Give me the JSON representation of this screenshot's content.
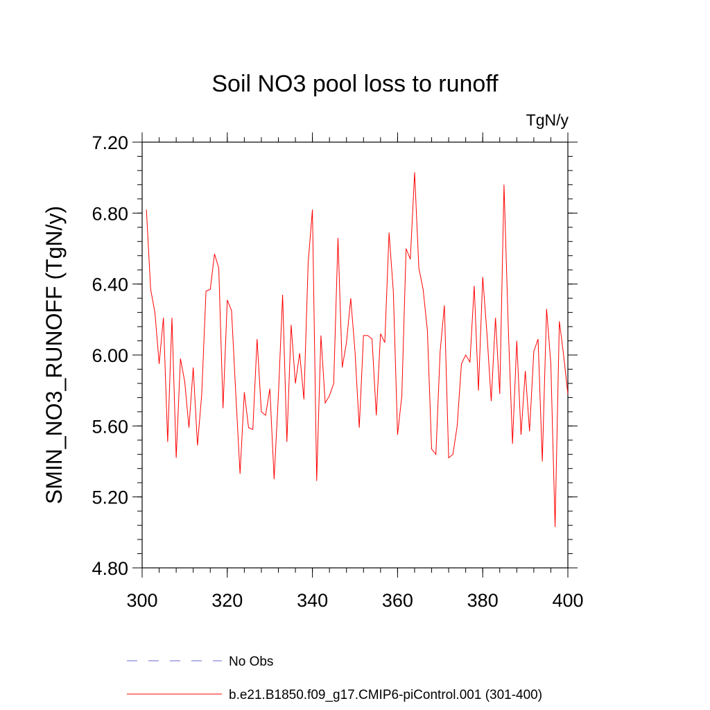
{
  "chart_data": {
    "type": "line",
    "title": "Soil NO3 pool loss to runoff",
    "units": "TgN/y",
    "xlabel": "",
    "ylabel": "SMIN_NO3_RUNOFF  (TgN/y)",
    "xlim": [
      300,
      400
    ],
    "ylim": [
      4.8,
      7.2
    ],
    "x_ticks": [
      300,
      320,
      340,
      360,
      380,
      400
    ],
    "y_ticks": [
      4.8,
      5.2,
      5.6,
      6.0,
      6.4,
      6.8,
      7.2
    ],
    "y_tick_labels": [
      "4.80",
      "5.20",
      "5.60",
      "6.00",
      "6.40",
      "6.80",
      "7.20"
    ],
    "x_tick_labels": [
      "300",
      "320",
      "340",
      "360",
      "380",
      "400"
    ],
    "series": [
      {
        "name": "b.e21.B1850.f09_g17.CMIP6-piControl.001 (301-400)",
        "color": "#ff0000",
        "style": "solid",
        "x_start": 301,
        "values": [
          6.82,
          6.37,
          6.24,
          5.95,
          6.21,
          5.51,
          6.21,
          5.42,
          5.98,
          5.85,
          5.59,
          5.93,
          5.49,
          5.78,
          6.36,
          6.37,
          6.57,
          6.49,
          5.7,
          6.31,
          6.25,
          5.78,
          5.33,
          5.79,
          5.59,
          5.58,
          6.09,
          5.68,
          5.66,
          5.81,
          5.3,
          5.77,
          6.34,
          5.51,
          6.17,
          5.84,
          6.01,
          5.75,
          6.52,
          6.82,
          5.29,
          6.11,
          5.73,
          5.77,
          5.84,
          6.66,
          5.93,
          6.07,
          6.32,
          6.02,
          5.59,
          6.11,
          6.11,
          6.09,
          5.66,
          6.12,
          6.07,
          6.69,
          6.36,
          5.55,
          5.77,
          6.6,
          6.54,
          7.03,
          6.49,
          6.37,
          6.14,
          5.47,
          5.44,
          6.02,
          6.28,
          5.42,
          5.44,
          5.6,
          5.95,
          6.0,
          5.96,
          6.39,
          5.8,
          6.44,
          6.12,
          5.74,
          6.21,
          5.78,
          6.96,
          6.16,
          5.5,
          6.08,
          5.55,
          5.91,
          5.57,
          6.02,
          6.09,
          5.4,
          6.26,
          5.95,
          5.03,
          6.19,
          6.0,
          5.78
        ]
      }
    ],
    "legend": [
      {
        "label": "No Obs",
        "color": "#6a6acd",
        "style": "dashed"
      },
      {
        "label": "b.e21.B1850.f09_g17.CMIP6-piControl.001 (301-400)",
        "color": "#ff0000",
        "style": "solid"
      }
    ]
  }
}
